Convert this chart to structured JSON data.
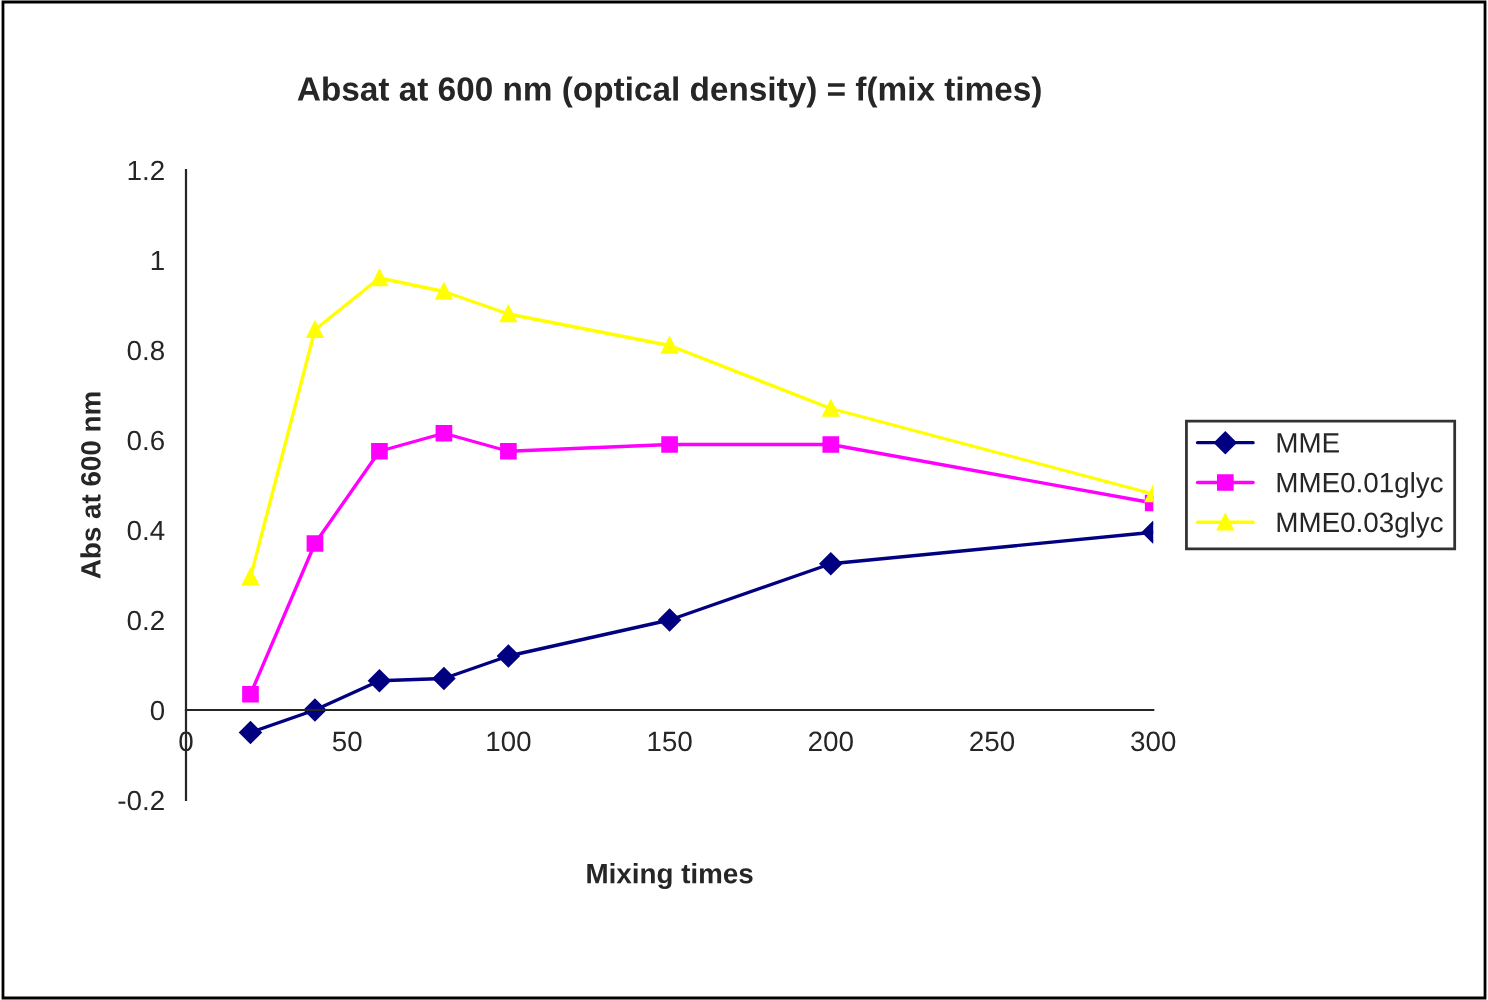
{
  "chart_data": {
    "type": "line",
    "title": "Absat at 600 nm (optical density) = f(mix times)",
    "xlabel": "Mixing times",
    "ylabel": "Abs at 600 nm",
    "x": [
      20,
      40,
      60,
      80,
      100,
      150,
      200,
      300
    ],
    "series": [
      {
        "name": "MME",
        "color": "#000080",
        "marker": "diamond",
        "values": [
          -0.05,
          0.0,
          0.065,
          0.07,
          0.12,
          0.2,
          0.325,
          0.395
        ]
      },
      {
        "name": "MME0.01glyc",
        "color": "#ff00ff",
        "marker": "square",
        "values": [
          0.035,
          0.37,
          0.575,
          0.615,
          0.575,
          0.59,
          0.59,
          0.46
        ]
      },
      {
        "name": "MME0.03glyc",
        "color": "#ffff00",
        "marker": "triangle",
        "values": [
          0.295,
          0.845,
          0.96,
          0.93,
          0.88,
          0.81,
          0.67,
          0.48
        ]
      }
    ],
    "xlim": [
      0,
      300
    ],
    "xticks": [
      0,
      50,
      100,
      150,
      200,
      250,
      300
    ],
    "ylim": [
      -0.2,
      1.2
    ],
    "yticks": [
      -0.2,
      0,
      0.2,
      0.4,
      0.6,
      0.8,
      1,
      1.2
    ],
    "grid": false,
    "legend": "right",
    "line_style": "solid"
  }
}
